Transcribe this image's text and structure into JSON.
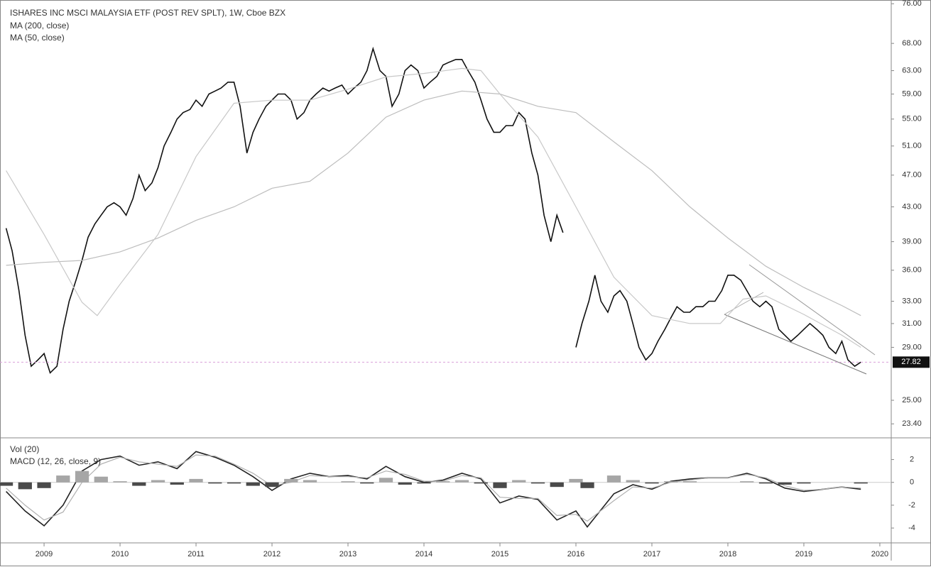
{
  "chart_data": [
    {
      "type": "line",
      "title": "ISHARES INC MSCI MALAYSIA ETF (POST REV SPLT), 1W, Cboe BZX",
      "log_scale": true,
      "xlim": [
        2008.42,
        2020.15
      ],
      "ylim": [
        22.5,
        76.8
      ],
      "yticks": [
        {
          "value": 76,
          "label": "76.00"
        },
        {
          "value": 68,
          "label": "68.00"
        },
        {
          "value": 63,
          "label": "63.00"
        },
        {
          "value": 59,
          "label": "59.00"
        },
        {
          "value": 55,
          "label": "55.00"
        },
        {
          "value": 51,
          "label": "51.00"
        },
        {
          "value": 47,
          "label": "47.00"
        },
        {
          "value": 43,
          "label": "43.00"
        },
        {
          "value": 39,
          "label": "39.00"
        },
        {
          "value": 36,
          "label": "36.00"
        },
        {
          "value": 33,
          "label": "33.00"
        },
        {
          "value": 31,
          "label": "31.00"
        },
        {
          "value": 29,
          "label": "29.00"
        },
        {
          "value": 25,
          "label": "25.00"
        },
        {
          "value": 23.4,
          "label": "23.40"
        }
      ],
      "price_line": 27.82,
      "series": [
        {
          "color": "#111111",
          "x": [
            2008.5,
            2008.58,
            2008.67,
            2008.75,
            2008.83,
            2008.92,
            2009.0,
            2009.08,
            2009.17,
            2009.25,
            2009.33,
            2009.42,
            2009.5,
            2009.58,
            2009.67,
            2009.75,
            2009.83,
            2009.92,
            2010.0,
            2010.08,
            2010.17,
            2010.25,
            2010.33,
            2010.42,
            2010.5,
            2010.58,
            2010.67,
            2010.75,
            2010.83,
            2010.92,
            2011.0,
            2011.08,
            2011.17,
            2011.25,
            2011.33,
            2011.42,
            2011.5,
            2011.58,
            2011.67,
            2011.75,
            2011.83,
            2011.92,
            2012.0,
            2012.08,
            2012.17,
            2012.25,
            2012.33,
            2012.42,
            2012.5,
            2012.58,
            2012.67,
            2012.75,
            2012.83,
            2012.92,
            2013.0,
            2013.08,
            2013.17,
            2013.25,
            2013.33,
            2013.42,
            2013.5,
            2013.58,
            2013.67,
            2013.75,
            2013.83,
            2013.92,
            2014.0,
            2014.08,
            2014.17,
            2014.25,
            2014.33,
            2014.42,
            2014.5,
            2014.58,
            2014.67,
            2014.75,
            2014.83,
            2014.92,
            2015.0,
            2015.08,
            2015.17,
            2015.25,
            2015.33,
            2015.42,
            2015.5,
            2015.58,
            2015.67,
            2015.75,
            2015.83,
            2015.92,
            2016.0,
            2016.08,
            2016.17,
            2016.25,
            2016.33,
            2016.42,
            2016.5,
            2016.58,
            2016.67,
            2016.75,
            2016.83,
            2016.92,
            2017.0,
            2017.08,
            2017.17,
            2017.25,
            2017.33,
            2017.42,
            2017.5,
            2017.58,
            2017.67,
            2017.75,
            2017.83,
            2017.92,
            2018.0,
            2018.08,
            2018.17,
            2018.25,
            2018.33,
            2018.42,
            2018.5,
            2018.58,
            2018.67,
            2018.75,
            2018.83,
            2018.92,
            2019.0,
            2019.08,
            2019.17,
            2019.25,
            2019.33,
            2019.42,
            2019.5,
            2019.58,
            2019.67,
            2019.75
          ],
          "values": [
            40.5,
            38,
            34,
            30,
            27.5,
            28,
            28.5,
            27,
            27.5,
            30.5,
            33,
            35,
            37,
            39.5,
            41,
            42,
            43,
            43.5,
            43,
            42,
            44,
            47,
            45,
            46,
            48,
            51,
            53,
            55,
            56,
            56.5,
            58,
            57,
            59,
            59.5,
            60,
            61,
            61,
            57,
            50,
            53,
            55,
            57,
            58,
            59,
            59,
            58,
            55,
            56,
            58,
            59,
            60,
            59.5,
            60,
            60.5,
            59,
            60,
            61,
            63,
            67,
            63,
            62,
            57,
            59,
            63,
            64,
            63,
            60,
            61,
            62,
            64,
            64.5,
            65,
            65,
            63,
            61,
            58,
            55,
            53,
            53,
            54,
            54,
            56,
            55,
            50,
            47,
            42,
            39,
            42,
            40,
            null,
            29,
            31,
            33,
            35.5,
            33,
            32,
            33.5,
            34,
            33,
            31,
            29,
            28,
            28.5,
            29.5,
            30.5,
            31.5,
            32.5,
            32,
            32,
            32.5,
            32.5,
            33,
            33,
            34,
            35.5,
            35.5,
            35,
            34,
            33,
            32.5,
            33,
            32.5,
            30.5,
            30,
            29.5,
            30,
            30.5,
            31,
            30.5,
            30,
            29,
            28.5,
            29.5,
            28,
            27.5,
            27.82
          ]
        },
        {
          "name": "MA (200, close)",
          "color": "#bdbdbd",
          "x": [
            2008.5,
            2009,
            2009.5,
            2010,
            2010.5,
            2011,
            2011.5,
            2012,
            2012.5,
            2013,
            2013.5,
            2014,
            2014.5,
            2015,
            2015.5,
            2016,
            2016.5,
            2017,
            2017.5,
            2018,
            2018.5,
            2019,
            2019.5,
            2019.75
          ],
          "values": [
            36.5,
            36.8,
            37,
            37.9,
            39.4,
            41.4,
            43,
            45.3,
            46.2,
            50,
            55.3,
            58,
            59.5,
            59,
            57,
            56,
            51.6,
            47.6,
            43,
            39.4,
            36.4,
            34.3,
            32.6,
            31.7
          ]
        },
        {
          "name": "MA (50, close)",
          "color": "#c8c8c8",
          "x": [
            2008.5,
            2009,
            2009.5,
            2009.7,
            2010,
            2010.5,
            2011,
            2011.5,
            2012,
            2012.5,
            2013,
            2013.5,
            2014,
            2014.5,
            2014.75,
            2015,
            2015.5,
            2016,
            2016.5,
            2017,
            2017.5,
            2017.9,
            2018.2,
            2018.5,
            2019,
            2019.5,
            2019.75
          ],
          "values": [
            47.6,
            39.8,
            32.9,
            31.7,
            34.6,
            39.8,
            49.5,
            57.5,
            58,
            58,
            59.8,
            61.9,
            62.5,
            63.4,
            63,
            59,
            52.3,
            43,
            35.3,
            31.7,
            31,
            31,
            33.2,
            33.5,
            31.8,
            30,
            29
          ]
        }
      ]
    },
    {
      "type": "line",
      "volume_label": "Vol (20)",
      "xlim": [
        2008.42,
        2020.15
      ],
      "ylim": [
        -5.3,
        3.9
      ],
      "xticks": [
        2009,
        2010,
        2011,
        2012,
        2013,
        2014,
        2015,
        2016,
        2017,
        2018,
        2019,
        2020
      ],
      "yticks": [
        2,
        0,
        -2,
        -4
      ],
      "series": [
        {
          "name": "MACD (12, 26, close, 9)",
          "color": "#222222",
          "x": [
            2008.5,
            2008.75,
            2009,
            2009.25,
            2009.5,
            2009.75,
            2010,
            2010.25,
            2010.5,
            2010.75,
            2011,
            2011.25,
            2011.5,
            2011.75,
            2012,
            2012.25,
            2012.5,
            2012.75,
            2013,
            2013.25,
            2013.5,
            2013.75,
            2014,
            2014.25,
            2014.5,
            2014.75,
            2015,
            2015.25,
            2015.5,
            2015.75,
            2016,
            2016.15,
            2016.5,
            2016.75,
            2017,
            2017.25,
            2017.5,
            2017.75,
            2018,
            2018.25,
            2018.5,
            2018.75,
            2019,
            2019.25,
            2019.5,
            2019.75
          ],
          "values": [
            -0.8,
            -2.5,
            -3.8,
            -2,
            1,
            2,
            2.3,
            1.5,
            1.8,
            1.2,
            2.7,
            2.2,
            1.5,
            0.5,
            -0.7,
            0.3,
            0.8,
            0.5,
            0.6,
            0.3,
            1.4,
            0.5,
            0,
            0.2,
            0.8,
            0.3,
            -1.8,
            -1.2,
            -1.5,
            -3.3,
            -2.5,
            -3.9,
            -1,
            -0.2,
            -0.6,
            0.1,
            0.3,
            0.4,
            0.4,
            0.8,
            0.3,
            -0.5,
            -0.8,
            -0.6,
            -0.4,
            -0.6
          ]
        },
        {
          "color": "#b0b0b0",
          "x": [
            2008.5,
            2008.75,
            2009,
            2009.25,
            2009.5,
            2009.75,
            2010,
            2010.25,
            2010.5,
            2010.75,
            2011,
            2011.25,
            2011.5,
            2011.75,
            2012,
            2012.25,
            2012.5,
            2012.75,
            2013,
            2013.25,
            2013.5,
            2013.75,
            2014,
            2014.25,
            2014.5,
            2014.75,
            2015,
            2015.25,
            2015.5,
            2015.75,
            2016,
            2016.15,
            2016.5,
            2016.75,
            2017,
            2017.25,
            2017.5,
            2017.75,
            2018,
            2018.25,
            2018.5,
            2018.75,
            2019,
            2019.25,
            2019.5,
            2019.75
          ],
          "values": [
            -0.5,
            -2,
            -3.3,
            -2.6,
            0,
            1.6,
            2.2,
            1.8,
            1.6,
            1.4,
            2.4,
            2.3,
            1.6,
            0.8,
            -0.3,
            0,
            0.6,
            0.5,
            0.5,
            0.4,
            1.0,
            0.7,
            0.1,
            0.1,
            0.6,
            0.4,
            -1.3,
            -1.4,
            -1.4,
            -2.9,
            -2.8,
            -3.4,
            -1.6,
            -0.4,
            -0.5,
            0,
            0.2,
            0.4,
            0.4,
            0.7,
            0.4,
            -0.3,
            -0.7,
            -0.6,
            -0.4,
            -0.5
          ]
        },
        {
          "type": "bar",
          "positive_color": "#a6a6a6",
          "negative_color": "#4a4a4a",
          "x": [
            2008.5,
            2008.75,
            2009,
            2009.25,
            2009.5,
            2009.75,
            2010,
            2010.25,
            2010.5,
            2010.75,
            2011,
            2011.25,
            2011.5,
            2011.75,
            2012,
            2012.25,
            2012.5,
            2012.75,
            2013,
            2013.25,
            2013.5,
            2013.75,
            2014,
            2014.25,
            2014.5,
            2014.75,
            2015,
            2015.25,
            2015.5,
            2015.75,
            2016,
            2016.15,
            2016.5,
            2016.75,
            2017,
            2017.25,
            2017.5,
            2017.75,
            2018,
            2018.25,
            2018.5,
            2018.75,
            2019,
            2019.25,
            2019.5,
            2019.75
          ],
          "values": [
            -0.3,
            -0.6,
            -0.5,
            0.6,
            1,
            0.5,
            0.1,
            -0.3,
            0.2,
            -0.2,
            0.3,
            -0.1,
            -0.1,
            -0.3,
            -0.4,
            0.3,
            0.2,
            0,
            0.1,
            -0.1,
            0.4,
            -0.2,
            -0.1,
            0.1,
            0.2,
            -0.1,
            -0.5,
            0.2,
            -0.1,
            -0.4,
            0.3,
            -0.5,
            0.6,
            0.2,
            -0.1,
            0.1,
            0.1,
            0,
            0,
            0.1,
            -0.1,
            -0.2,
            -0.1,
            0,
            0,
            -0.1
          ]
        }
      ]
    }
  ]
}
